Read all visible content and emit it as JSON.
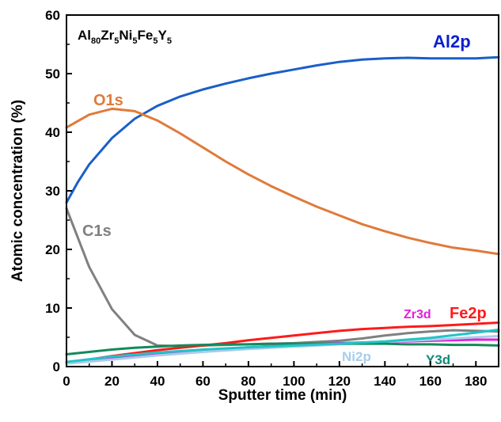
{
  "chart_data": {
    "type": "line",
    "title": "",
    "composition": [
      {
        "el": "Al",
        "sub": "80"
      },
      {
        "el": "Zr",
        "sub": "5"
      },
      {
        "el": "Ni",
        "sub": "5"
      },
      {
        "el": "Fe",
        "sub": "5"
      },
      {
        "el": "Y",
        "sub": "5"
      }
    ],
    "xlabel": "Sputter time (min)",
    "ylabel": "Atomic concentration (%)",
    "xlim": [
      0,
      190
    ],
    "ylim": [
      0,
      60
    ],
    "xticks": [
      0,
      20,
      40,
      60,
      80,
      100,
      120,
      140,
      160,
      180
    ],
    "yticks": [
      0,
      10,
      20,
      30,
      40,
      50,
      60
    ],
    "grid": false,
    "legend": "inline labels",
    "series": [
      {
        "name": "Al2p",
        "color": "#1a5fc8",
        "label_color": "#0a1fd0",
        "x": [
          0,
          5,
          10,
          20,
          30,
          40,
          50,
          60,
          70,
          80,
          90,
          100,
          110,
          120,
          130,
          140,
          150,
          160,
          170,
          180,
          190
        ],
        "y": [
          28,
          31.5,
          34.5,
          39,
          42.3,
          44.5,
          46.1,
          47.3,
          48.3,
          49.2,
          50,
          50.7,
          51.4,
          52,
          52.4,
          52.6,
          52.7,
          52.6,
          52.6,
          52.6,
          52.8
        ]
      },
      {
        "name": "O1s",
        "color": "#e07a3a",
        "label_color": "#e07a3a",
        "x": [
          0,
          10,
          20,
          30,
          40,
          50,
          60,
          70,
          80,
          90,
          100,
          110,
          120,
          130,
          140,
          150,
          160,
          170,
          180,
          190
        ],
        "y": [
          40.8,
          43,
          44,
          43.6,
          42,
          39.8,
          37.4,
          35,
          32.8,
          30.8,
          29,
          27.3,
          25.8,
          24.3,
          23.1,
          22,
          21.1,
          20.3,
          19.8,
          19.2
        ]
      },
      {
        "name": "C1s",
        "color": "#808080",
        "label_color": "#808080",
        "x": [
          0,
          10,
          20,
          30,
          40,
          50,
          60,
          70,
          80,
          90,
          100,
          110,
          120,
          130,
          140,
          150,
          160,
          170,
          180,
          190
        ],
        "y": [
          27,
          17,
          9.8,
          5.4,
          3.6,
          3.5,
          3.6,
          3.7,
          3.8,
          3.9,
          4,
          4.2,
          4.4,
          4.8,
          5.3,
          5.7,
          6,
          6.2,
          6.1,
          6
        ]
      },
      {
        "name": "Fe2p",
        "color": "#ff1a1a",
        "label_color": "#ff1a1a",
        "x": [
          0,
          10,
          20,
          30,
          40,
          50,
          60,
          70,
          80,
          90,
          100,
          110,
          120,
          130,
          140,
          150,
          160,
          170,
          180,
          190
        ],
        "y": [
          0.7,
          1.2,
          1.8,
          2.3,
          2.8,
          3.2,
          3.6,
          4,
          4.5,
          4.9,
          5.3,
          5.7,
          6.1,
          6.4,
          6.6,
          6.8,
          6.9,
          7.1,
          7.3,
          7.5
        ]
      },
      {
        "name": "Zr3d",
        "color": "#e020d8",
        "label_color": "#e020d8",
        "x": [
          0,
          20,
          40,
          60,
          80,
          100,
          120,
          140,
          160,
          180,
          190
        ],
        "y": [
          0.7,
          1.5,
          2.2,
          2.8,
          3.3,
          3.7,
          4,
          4.2,
          4.4,
          4.6,
          4.6
        ]
      },
      {
        "name": "Ni2p",
        "color": "#a9cdea",
        "label_color": "#a9cdea",
        "x": [
          0,
          20,
          40,
          60,
          80,
          100,
          120,
          140,
          160,
          180,
          190
        ],
        "y": [
          0.5,
          1.2,
          1.9,
          2.5,
          3,
          3.4,
          3.8,
          4.2,
          4.6,
          5,
          5.2
        ]
      },
      {
        "name": "Y3d",
        "color": "#138a5a",
        "label_color": "#138a78",
        "x": [
          0,
          10,
          20,
          30,
          40,
          50,
          60,
          70,
          80,
          90,
          100,
          110,
          120,
          130,
          140,
          150,
          160,
          170,
          180,
          190
        ],
        "y": [
          2.1,
          2.5,
          2.9,
          3.2,
          3.4,
          3.6,
          3.7,
          3.8,
          3.8,
          3.9,
          3.9,
          3.9,
          3.9,
          3.9,
          3.9,
          3.8,
          3.8,
          3.7,
          3.7,
          3.6
        ]
      },
      {
        "name": "",
        "color": "#20c4c8",
        "label_color": "#20c4c8",
        "x": [
          0,
          20,
          40,
          60,
          80,
          100,
          120,
          140,
          160,
          180,
          190
        ],
        "y": [
          0.8,
          1.7,
          2.4,
          2.9,
          3.3,
          3.6,
          3.9,
          4.3,
          4.9,
          5.8,
          6.3
        ]
      }
    ]
  }
}
